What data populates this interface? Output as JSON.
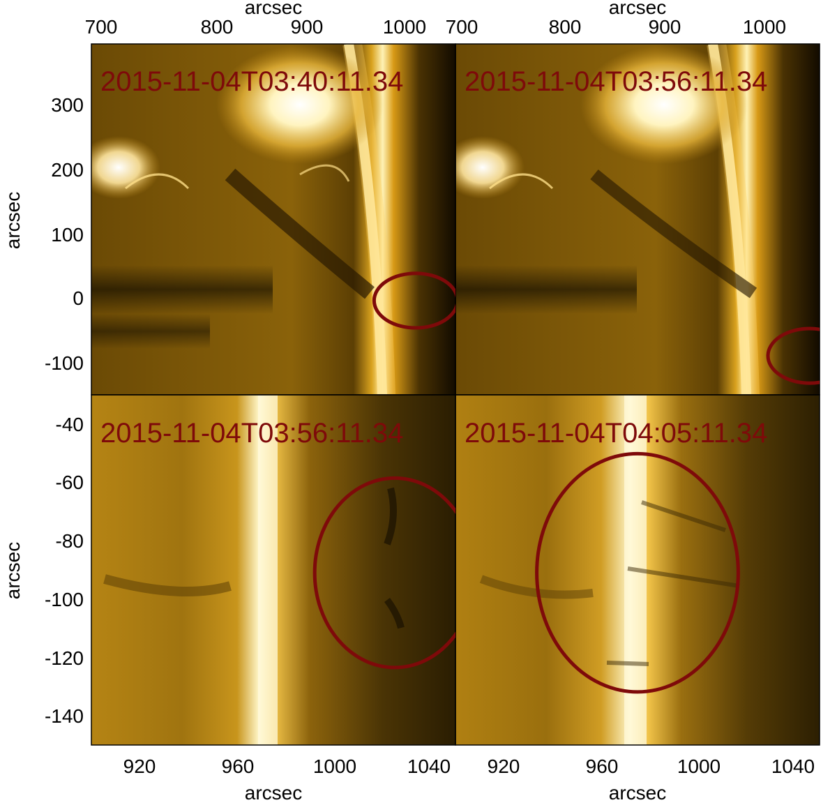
{
  "figure": {
    "panels": [
      {
        "id": "tl",
        "timestamp": "2015-11-04T03:40:11.34",
        "xlim": [
          683,
          1050
        ],
        "ylim": [
          -150,
          390
        ],
        "marker": {
          "cx": 1010,
          "cy": -5,
          "r": 42,
          "color": "#7e0a0a"
        }
      },
      {
        "id": "tr",
        "timestamp": "2015-11-04T03:56:11.34",
        "xlim": [
          683,
          1050
        ],
        "ylim": [
          -150,
          390
        ],
        "marker": {
          "cx": 1040,
          "cy": -90,
          "r": 42,
          "color": "#7e0a0a"
        }
      },
      {
        "id": "bl",
        "timestamp": "2015-11-04T03:56:11.34",
        "xlim": [
          900,
          1050
        ],
        "ylim": [
          -150,
          -28
        ],
        "marker": {
          "cx": 1025,
          "cy": -90,
          "r": 33,
          "color": "#7e0a0a"
        }
      },
      {
        "id": "br",
        "timestamp": "2015-11-04T04:05:11.34",
        "xlim": [
          900,
          1050
        ],
        "ylim": [
          -150,
          -28
        ],
        "marker": {
          "cx": 975,
          "cy": -90,
          "r": 41.5,
          "color": "#7e0a0a"
        }
      }
    ],
    "top_axis": {
      "label": "arcsec",
      "ticks_left": [
        "700",
        "800",
        "900",
        "1000"
      ],
      "ticks_right": [
        "700",
        "800",
        "900",
        "1000"
      ]
    },
    "bottom_axis": {
      "label": "arcsec",
      "ticks_left": [
        "920",
        "960",
        "1000",
        "1040"
      ],
      "ticks_right": [
        "920",
        "960",
        "1000",
        "1040"
      ]
    },
    "left_axis_top": {
      "label": "arcsec",
      "ticks": [
        "300",
        "200",
        "100",
        "0",
        "-100"
      ]
    },
    "left_axis_bottom": {
      "label": "arcsec",
      "ticks": [
        "-40",
        "-60",
        "-80",
        "-100",
        "-120",
        "-140"
      ]
    },
    "colormap": "AIA 171 gold",
    "marker_color": "#7e0a0a"
  }
}
